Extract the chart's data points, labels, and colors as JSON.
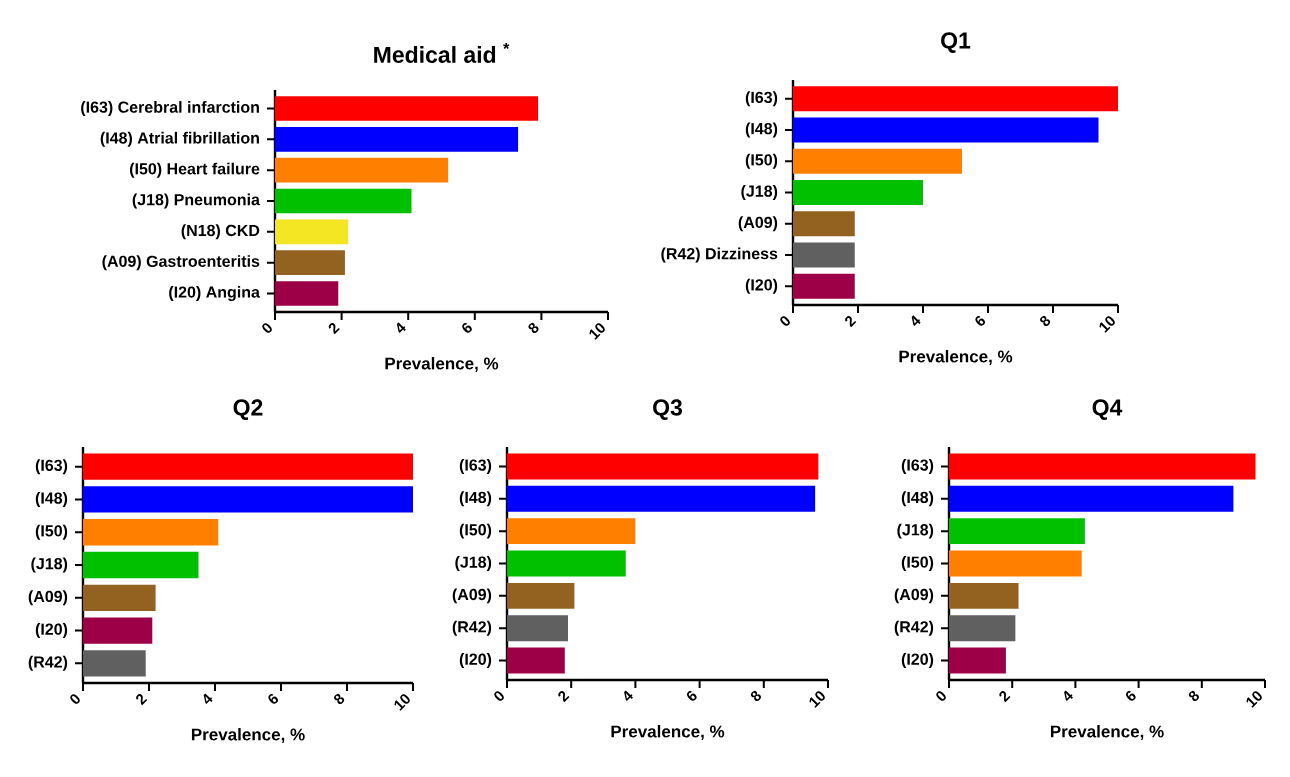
{
  "chart_data": [
    {
      "type": "bar",
      "orientation": "horizontal",
      "title": "Medical aid $^{*}$",
      "xlabel": "Prevalence, %",
      "categories": [
        "(I63) Cerebral infarction",
        "(I48) Atrial fibrillation",
        "(I50) Heart failure",
        "(J18) Pneumonia",
        "(N18) CKD",
        "(A09) Gastroenteritis",
        "(I20) Angina"
      ],
      "values": [
        7.9,
        7.3,
        5.2,
        4.1,
        2.2,
        2.1,
        1.9
      ],
      "colors": [
        "#ff0000",
        "#0000ff",
        "#ff8000",
        "#00c000",
        "#f5e623",
        "#946220",
        "#9e0048"
      ],
      "xlim": [
        0,
        10
      ],
      "xticks": [
        0,
        2,
        4,
        6,
        8,
        10
      ]
    },
    {
      "type": "bar",
      "orientation": "horizontal",
      "title": "Q1",
      "xlabel": "Prevalence, %",
      "categories": [
        "(I63)",
        "(I48)",
        "(I50)",
        "(J18)",
        "(A09)",
        "(R42) Dizziness",
        "(I20)"
      ],
      "values": [
        10.0,
        9.4,
        5.2,
        4.0,
        1.9,
        1.9,
        1.9
      ],
      "colors": [
        "#ff0000",
        "#0000ff",
        "#ff8000",
        "#00c000",
        "#946220",
        "#606060",
        "#9e0048"
      ],
      "xlim": [
        0,
        10
      ],
      "xticks": [
        0,
        2,
        4,
        6,
        8,
        10
      ]
    },
    {
      "type": "bar",
      "orientation": "horizontal",
      "title": "Q2",
      "xlabel": "Prevalence, %",
      "categories": [
        "(I63)",
        "(I48)",
        "(I50)",
        "(J18)",
        "(A09)",
        "(I20)",
        "(R42)"
      ],
      "values": [
        10.0,
        10.0,
        4.1,
        3.5,
        2.2,
        2.1,
        1.9
      ],
      "colors": [
        "#ff0000",
        "#0000ff",
        "#ff8000",
        "#00c000",
        "#946220",
        "#9e0048",
        "#606060"
      ],
      "xlim": [
        0,
        10
      ],
      "xticks": [
        0,
        2,
        4,
        6,
        8,
        10
      ]
    },
    {
      "type": "bar",
      "orientation": "horizontal",
      "title": "Q3",
      "xlabel": "Prevalence, %",
      "categories": [
        "(I63)",
        "(I48)",
        "(I50)",
        "(J18)",
        "(A09)",
        "(R42)",
        "(I20)"
      ],
      "values": [
        9.7,
        9.6,
        4.0,
        3.7,
        2.1,
        1.9,
        1.8
      ],
      "colors": [
        "#ff0000",
        "#0000ff",
        "#ff8000",
        "#00c000",
        "#946220",
        "#606060",
        "#9e0048"
      ],
      "xlim": [
        0,
        10
      ],
      "xticks": [
        0,
        2,
        4,
        6,
        8,
        10
      ]
    },
    {
      "type": "bar",
      "orientation": "horizontal",
      "title": "Q4",
      "xlabel": "Prevalence, %",
      "categories": [
        "(I63)",
        "(I48)",
        "(J18)",
        "(I50)",
        "(A09)",
        "(R42)",
        "(I20)"
      ],
      "values": [
        9.7,
        9.0,
        4.3,
        4.2,
        2.2,
        2.1,
        1.8
      ],
      "colors": [
        "#ff0000",
        "#0000ff",
        "#00c000",
        "#ff8000",
        "#946220",
        "#606060",
        "#9e0048"
      ],
      "xlim": [
        0,
        10
      ],
      "xticks": [
        0,
        2,
        4,
        6,
        8,
        10
      ]
    }
  ]
}
